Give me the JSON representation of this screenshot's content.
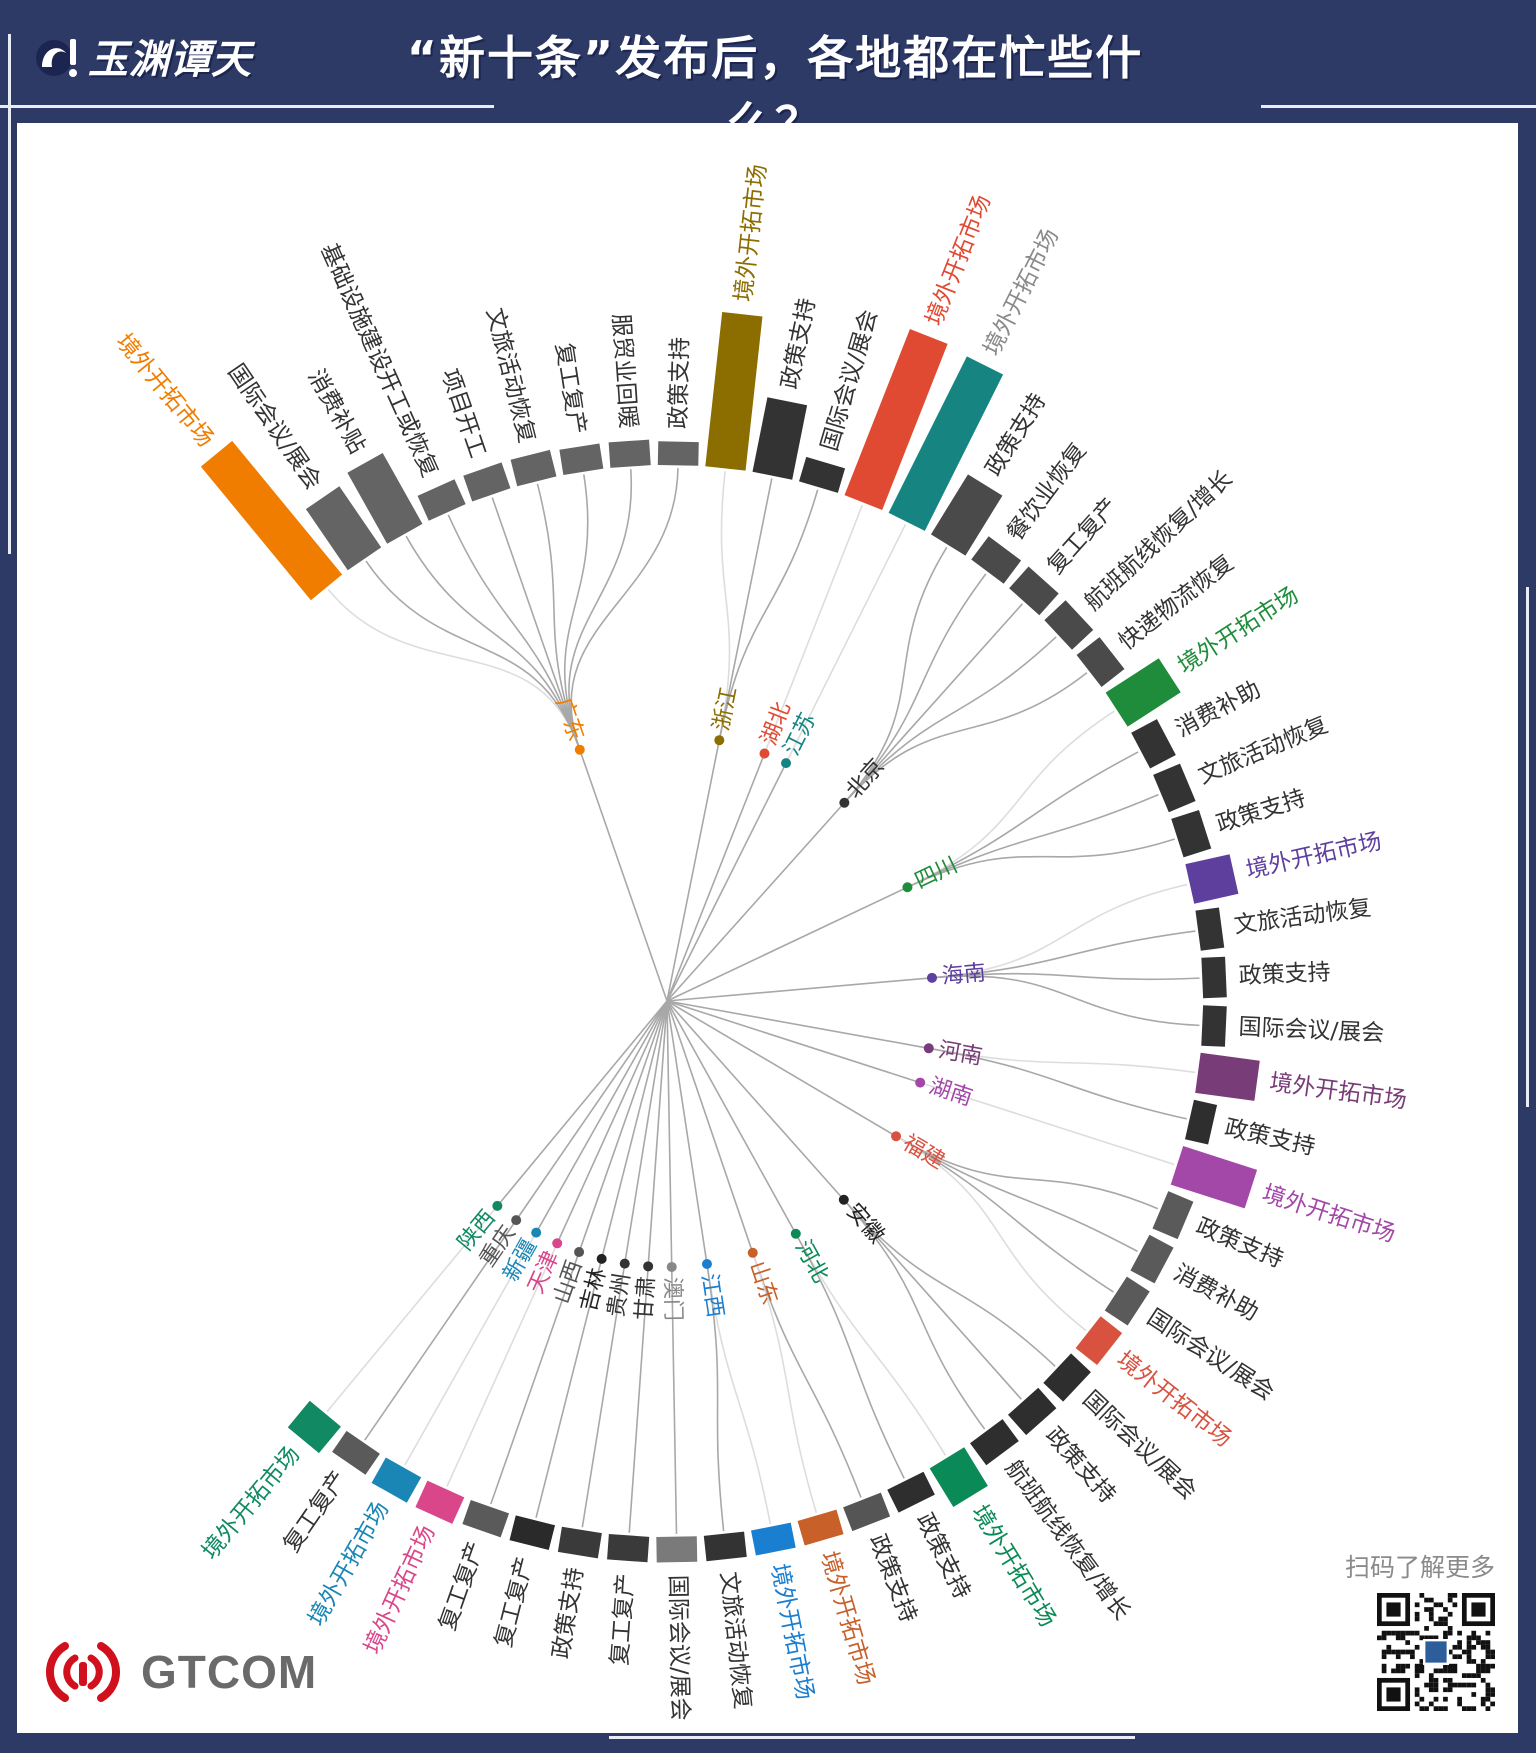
{
  "header": {
    "logo_text": "玉渊谭天",
    "title": "“新十条”发布后，各地都在忙些什么？"
  },
  "footer": {
    "brand": "GTCOM",
    "qr_caption": "扫码了解更多"
  },
  "colors": {
    "background": "#2d3a66",
    "panel": "#ffffff",
    "link": "#a8a8a8",
    "link_light": "#dddddd",
    "label_default": "#333333",
    "brand_red": "#d0101c"
  },
  "diagram": {
    "note_bar_value": "relative bar length",
    "provinces": [
      {
        "name": "广东",
        "color": "#f07d00",
        "bar_color": "#646464",
        "leaves": [
          {
            "label": "境外开拓市场",
            "value": 9.7,
            "overseas": true
          },
          {
            "label": "国际会议/展会",
            "value": 4.2
          },
          {
            "label": "消费补贴",
            "value": 4.6
          },
          {
            "label": "基础设施建设开工或恢复",
            "value": 1.6
          },
          {
            "label": "项目开工",
            "value": 1.6
          },
          {
            "label": "文旅活动恢复",
            "value": 1.6
          },
          {
            "label": "复工复产",
            "value": 1.5
          },
          {
            "label": "服贸业回暖",
            "value": 1.5
          },
          {
            "label": "政策支持",
            "value": 1.4
          }
        ]
      },
      {
        "name": "浙江",
        "color": "#8c6d00",
        "bar_color": "#333333",
        "leaves": [
          {
            "label": "境外开拓市场",
            "value": 8.7,
            "overseas": true
          },
          {
            "label": "政策支持",
            "value": 4.3
          },
          {
            "label": "国际会议/展会",
            "value": 1.5
          }
        ]
      },
      {
        "name": "湖北",
        "color": "#e04a32",
        "bar_color": "#333333",
        "leaves": [
          {
            "label": "境外开拓市场",
            "value": 10,
            "overseas": true
          }
        ]
      },
      {
        "name": "江苏",
        "color": "#168582",
        "label_color": "#8a8a8a",
        "bar_color": "#333333",
        "leaves": [
          {
            "label": "境外开拓市场",
            "value": 9.8,
            "overseas": true
          }
        ]
      },
      {
        "name": "北京",
        "color": "#333333",
        "bar_color": "#4a4a4a",
        "leaves": [
          {
            "label": "政策支持",
            "value": 4.0
          },
          {
            "label": "餐饮业恢复",
            "value": 1.7
          },
          {
            "label": "复工复产",
            "value": 1.7
          },
          {
            "label": "航班航线恢复/增长",
            "value": 1.7
          },
          {
            "label": "快递物流恢复",
            "value": 1.7
          }
        ]
      },
      {
        "name": "四川",
        "color": "#1e8c3a",
        "bar_color": "#333333",
        "leaves": [
          {
            "label": "境外开拓市场",
            "value": 3.6,
            "overseas": true
          },
          {
            "label": "消费补助",
            "value": 1.7
          },
          {
            "label": "文旅活动恢复",
            "value": 1.7
          },
          {
            "label": "政策支持",
            "value": 1.7
          }
        ]
      },
      {
        "name": "海南",
        "color": "#5f3f9e",
        "bar_color": "#333333",
        "leaves": [
          {
            "label": "境外开拓市场",
            "value": 2.6,
            "overseas": true
          },
          {
            "label": "文旅活动恢复",
            "value": 1.4
          },
          {
            "label": "政策支持",
            "value": 1.4
          },
          {
            "label": "国际会议/展会",
            "value": 1.4
          }
        ]
      },
      {
        "name": "河南",
        "color": "#783c78",
        "bar_color": "#2e2e2e",
        "leaves": [
          {
            "label": "境外开拓市场",
            "value": 3.4,
            "overseas": true
          },
          {
            "label": "政策支持",
            "value": 1.4
          }
        ]
      },
      {
        "name": "湖南",
        "color": "#a348a8",
        "bar_color": "#333333",
        "leaves": [
          {
            "label": "境外开拓市场",
            "value": 4.4,
            "overseas": true
          }
        ]
      },
      {
        "name": "福建",
        "color": "#d9523f",
        "bar_color": "#5a5a5a",
        "leaves": [
          {
            "label": "政策支持",
            "value": 1.6
          },
          {
            "label": "消费补助",
            "value": 1.6
          },
          {
            "label": "国际会议/展会",
            "value": 1.6
          },
          {
            "label": "境外开拓市场",
            "value": 1.6,
            "overseas": true
          }
        ]
      },
      {
        "name": "安徽",
        "color": "#222222",
        "bar_color": "#2e2e2e",
        "leaves": [
          {
            "label": "国际会议/展会",
            "value": 1.6
          },
          {
            "label": "政策支持",
            "value": 1.6
          },
          {
            "label": "航班航线恢复/增长",
            "value": 1.6
          }
        ]
      },
      {
        "name": "河北",
        "color": "#0a8a56",
        "bar_color": "#2e2e2e",
        "leaves": [
          {
            "label": "境外开拓市场",
            "value": 2.6,
            "overseas": true
          },
          {
            "label": "政策支持",
            "value": 1.5
          }
        ]
      },
      {
        "name": "山东",
        "color": "#c8602a",
        "bar_color": "#555555",
        "leaves": [
          {
            "label": "政策支持",
            "value": 1.5
          },
          {
            "label": "境外开拓市场",
            "value": 1.5,
            "overseas": true
          }
        ]
      },
      {
        "name": "江西",
        "color": "#1a7fd0",
        "bar_color": "#333333",
        "leaves": [
          {
            "label": "境外开拓市场",
            "value": 1.5,
            "overseas": true
          },
          {
            "label": "文旅活动恢复",
            "value": 1.5
          }
        ]
      },
      {
        "name": "澳门",
        "color": "#888888",
        "bar_color": "#7a7a7a",
        "leaves": [
          {
            "label": "国际会议/展会",
            "value": 1.5
          }
        ]
      },
      {
        "name": "甘肃",
        "color": "#333333",
        "bar_color": "#3a3a3a",
        "leaves": [
          {
            "label": "复工复产",
            "value": 1.5
          }
        ]
      },
      {
        "name": "贵州",
        "color": "#333333",
        "bar_color": "#3a3a3a",
        "leaves": [
          {
            "label": "政策支持",
            "value": 1.5
          }
        ]
      },
      {
        "name": "吉林",
        "color": "#222222",
        "bar_color": "#2a2a2a",
        "leaves": [
          {
            "label": "复工复产",
            "value": 1.5
          }
        ]
      },
      {
        "name": "山西",
        "color": "#555555",
        "bar_color": "#5a5a5a",
        "leaves": [
          {
            "label": "复工复产",
            "value": 1.5
          }
        ]
      },
      {
        "name": "天津",
        "color": "#d9478a",
        "bar_color": "#333333",
        "leaves": [
          {
            "label": "境外开拓市场",
            "value": 1.7,
            "overseas": true
          }
        ]
      },
      {
        "name": "新疆",
        "color": "#1a86b5",
        "bar_color": "#333333",
        "leaves": [
          {
            "label": "境外开拓市场",
            "value": 1.7,
            "overseas": true
          }
        ]
      },
      {
        "name": "重庆",
        "color": "#555555",
        "bar_color": "#5a5a5a",
        "leaves": [
          {
            "label": "复工复产",
            "value": 1.5
          }
        ]
      },
      {
        "name": "陕西",
        "color": "#118a64",
        "bar_color": "#333333",
        "leaves": [
          {
            "label": "境外开拓市场",
            "value": 2.0,
            "overseas": true
          }
        ]
      }
    ]
  }
}
